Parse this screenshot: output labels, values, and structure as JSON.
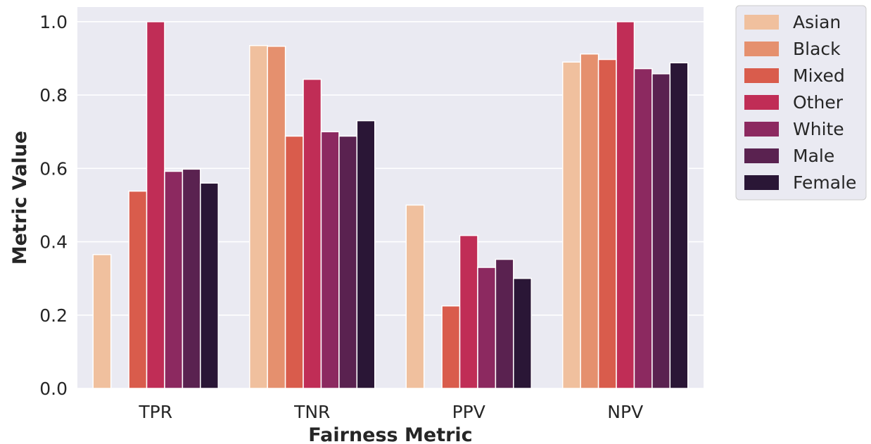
{
  "chart_data": {
    "type": "bar",
    "xlabel": "Fairness Metric",
    "ylabel": "Metric Value",
    "categories": [
      "TPR",
      "TNR",
      "PPV",
      "NPV"
    ],
    "ylim": [
      0,
      1.04
    ],
    "yticks": [
      "0.0",
      "0.2",
      "0.4",
      "0.6",
      "0.8",
      "1.0"
    ],
    "ytick_values": [
      0,
      0.2,
      0.4,
      0.6,
      0.8,
      1.0
    ],
    "grid": true,
    "legend_position": "outside-right",
    "series": [
      {
        "name": "Asian",
        "color": "#F0C09E",
        "values": [
          0.365,
          0.935,
          0.5,
          0.89
        ]
      },
      {
        "name": "Black",
        "color": "#E5906E",
        "values": [
          0.0,
          0.933,
          0.0,
          0.912
        ]
      },
      {
        "name": "Mixed",
        "color": "#D95C4C",
        "values": [
          0.538,
          0.688,
          0.225,
          0.897
        ]
      },
      {
        "name": "Other",
        "color": "#C02D56",
        "values": [
          1.0,
          0.843,
          0.417,
          1.0
        ]
      },
      {
        "name": "White",
        "color": "#8C2960",
        "values": [
          0.592,
          0.7,
          0.33,
          0.872
        ]
      },
      {
        "name": "Male",
        "color": "#5A2250",
        "values": [
          0.598,
          0.688,
          0.352,
          0.858
        ]
      },
      {
        "name": "Female",
        "color": "#2A1636",
        "values": [
          0.56,
          0.73,
          0.3,
          0.888
        ]
      }
    ]
  }
}
